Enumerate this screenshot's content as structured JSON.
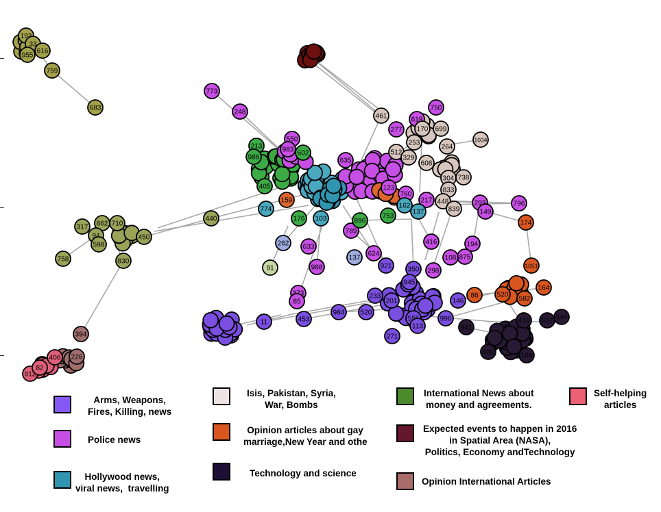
{
  "palette": {
    "arms": "#8459f5",
    "police": "#c84fe6",
    "hollywood": "#2f95b0",
    "isis": "#efe3e3",
    "opinion_gay": "#d9571f",
    "technology": "#1c0e35",
    "international": "#4d8a2e",
    "expected": "#651730",
    "opinion_intl": "#a96e6b",
    "selfhelp": "#ec6173",
    "olive": "#a4a24c",
    "olive2": "#9aa459",
    "green_node": "#3cab45",
    "tan": "#d7c6bd",
    "lightblue": "#9eace0",
    "purple_node": "#7a4ee0",
    "magenta_node": "#c033c4",
    "dark_node": "#281a35",
    "darkred_node": "#6e1010",
    "teal_node": "#4aa8bf",
    "orange_node": "#dd6630",
    "pink_node": "#e0607a",
    "brown_node": "#9f6f6d",
    "pale_green": "#c6d8a4"
  },
  "legend": [
    {
      "key": "arms",
      "label": "Arms, Weapons,\nFires, Killing, news"
    },
    {
      "key": "police",
      "label": "Police news"
    },
    {
      "key": "hollywood",
      "label": "Hollywood news,\nviral news,  travelling"
    },
    {
      "key": "isis",
      "label": "Isis, Pakistan, Syria,\nWar, Bombs"
    },
    {
      "key": "opinion_gay",
      "label": "Opinion articles about gay\nmarriage,New Year and other"
    },
    {
      "key": "technology",
      "label": "Technology and science"
    },
    {
      "key": "international",
      "label": "International News about\nmoney and agreements."
    },
    {
      "key": "expected",
      "label": "Expected events to happen in 2016\nin Spatial Area (NASA),\nPolitics, Economy andTechnology"
    },
    {
      "key": "opinion_intl",
      "label": "Opinion International Articles"
    },
    {
      "key": "selfhelp",
      "label": "Self-helping\narticles"
    }
  ],
  "nodes": [
    {
      "id": "192",
      "c": "olive"
    },
    {
      "id": "33",
      "c": "olive"
    },
    {
      "id": "616",
      "c": "olive"
    },
    {
      "id": "955",
      "c": "olive"
    },
    {
      "id": "759",
      "c": "olive"
    },
    {
      "id": "683",
      "c": "olive"
    },
    {
      "id": "773",
      "c": "police"
    },
    {
      "id": "248",
      "c": "police"
    },
    {
      "id": "461",
      "c": "tan"
    },
    {
      "id": "277",
      "c": "police"
    },
    {
      "id": "619",
      "c": "police"
    },
    {
      "id": "750",
      "c": "police"
    },
    {
      "id": "170",
      "c": "tan"
    },
    {
      "id": "699",
      "c": "tan"
    },
    {
      "id": "253",
      "c": "tan"
    },
    {
      "id": "264",
      "c": "tan"
    },
    {
      "id": "1034",
      "c": "tan"
    },
    {
      "id": "512",
      "c": "tan"
    },
    {
      "id": "329",
      "c": "tan"
    },
    {
      "id": "608",
      "c": "tan"
    },
    {
      "id": "213",
      "c": "green_node"
    },
    {
      "id": "986",
      "c": "green_node"
    },
    {
      "id": "550",
      "c": "police"
    },
    {
      "id": "983",
      "c": "police"
    },
    {
      "id": "602",
      "c": "green_node"
    },
    {
      "id": "635",
      "c": "police"
    },
    {
      "id": "405",
      "c": "green_node"
    },
    {
      "id": "123",
      "c": "police"
    },
    {
      "id": "304",
      "c": "tan"
    },
    {
      "id": "738",
      "c": "tan"
    },
    {
      "id": "833",
      "c": "tan"
    },
    {
      "id": "760",
      "c": "police"
    },
    {
      "id": "217",
      "c": "police"
    },
    {
      "id": "448",
      "c": "tan"
    },
    {
      "id": "293",
      "c": "police"
    },
    {
      "id": "796",
      "c": "police"
    },
    {
      "id": "149",
      "c": "police"
    },
    {
      "id": "174",
      "c": "opinion_gay"
    },
    {
      "id": "839",
      "c": "tan"
    },
    {
      "id": "317",
      "c": "olive2"
    },
    {
      "id": "862",
      "c": "olive2"
    },
    {
      "id": "710",
      "c": "olive2"
    },
    {
      "id": "94",
      "c": "olive2"
    },
    {
      "id": "598",
      "c": "olive2"
    },
    {
      "id": "450",
      "c": "olive2"
    },
    {
      "id": "440",
      "c": "olive2"
    },
    {
      "id": "758",
      "c": "olive2"
    },
    {
      "id": "830",
      "c": "olive2"
    },
    {
      "id": "774",
      "c": "teal_node"
    },
    {
      "id": "159",
      "c": "orange_node"
    },
    {
      "id": "176",
      "c": "green_node"
    },
    {
      "id": "103",
      "c": "teal_node"
    },
    {
      "id": "162",
      "c": "teal_node"
    },
    {
      "id": "137",
      "c": "teal_node"
    },
    {
      "id": "753",
      "c": "green_node"
    },
    {
      "id": "789",
      "c": "police"
    },
    {
      "id": "896",
      "c": "green_node"
    },
    {
      "id": "262",
      "c": "lightblue"
    },
    {
      "id": "633",
      "c": "police"
    },
    {
      "id": "91",
      "c": "pale_green"
    },
    {
      "id": "988",
      "c": "police"
    },
    {
      "id": "137",
      "c": "lightblue"
    },
    {
      "id": "624",
      "c": "police"
    },
    {
      "id": "416",
      "c": "police"
    },
    {
      "id": "194",
      "c": "police"
    },
    {
      "id": "875",
      "c": "police"
    },
    {
      "id": "108",
      "c": "police"
    },
    {
      "id": "298",
      "c": "police"
    },
    {
      "id": "921",
      "c": "purple_node"
    },
    {
      "id": "350",
      "c": "purple_node"
    },
    {
      "id": "945",
      "c": "purple_node"
    },
    {
      "id": "373",
      "c": "police"
    },
    {
      "id": "85",
      "c": "police"
    },
    {
      "id": "233",
      "c": "purple_node"
    },
    {
      "id": "201",
      "c": "purple_node"
    },
    {
      "id": "984",
      "c": "purple_node"
    },
    {
      "id": "520",
      "c": "purple_node"
    },
    {
      "id": "453",
      "c": "purple_node"
    },
    {
      "id": "11",
      "c": "purple_node"
    },
    {
      "id": "555",
      "c": "purple_node"
    },
    {
      "id": "113",
      "c": "purple_node"
    },
    {
      "id": "271",
      "c": "purple_node"
    },
    {
      "id": "996",
      "c": "purple_node"
    },
    {
      "id": "146",
      "c": "purple_node"
    },
    {
      "id": "1051",
      "c": "opinion_gay"
    },
    {
      "id": "164",
      "c": "opinion_gay"
    },
    {
      "id": "86",
      "c": "opinion_gay"
    },
    {
      "id": "582",
      "c": "opinion_gay"
    },
    {
      "id": "520",
      "c": "opinion_gay"
    },
    {
      "id": "410",
      "c": "dark_node"
    },
    {
      "id": "657",
      "c": "dark_node"
    },
    {
      "id": "644",
      "c": "dark_node"
    },
    {
      "id": "941",
      "c": "dark_node"
    },
    {
      "id": "920",
      "c": "dark_node"
    },
    {
      "id": "169",
      "c": "dark_node"
    },
    {
      "id": "394",
      "c": "brown_node"
    },
    {
      "id": "226",
      "c": "brown_node"
    },
    {
      "id": "912",
      "c": "pink_node"
    },
    {
      "id": "406",
      "c": "pink_node"
    },
    {
      "id": "82",
      "c": "pink_node"
    }
  ]
}
